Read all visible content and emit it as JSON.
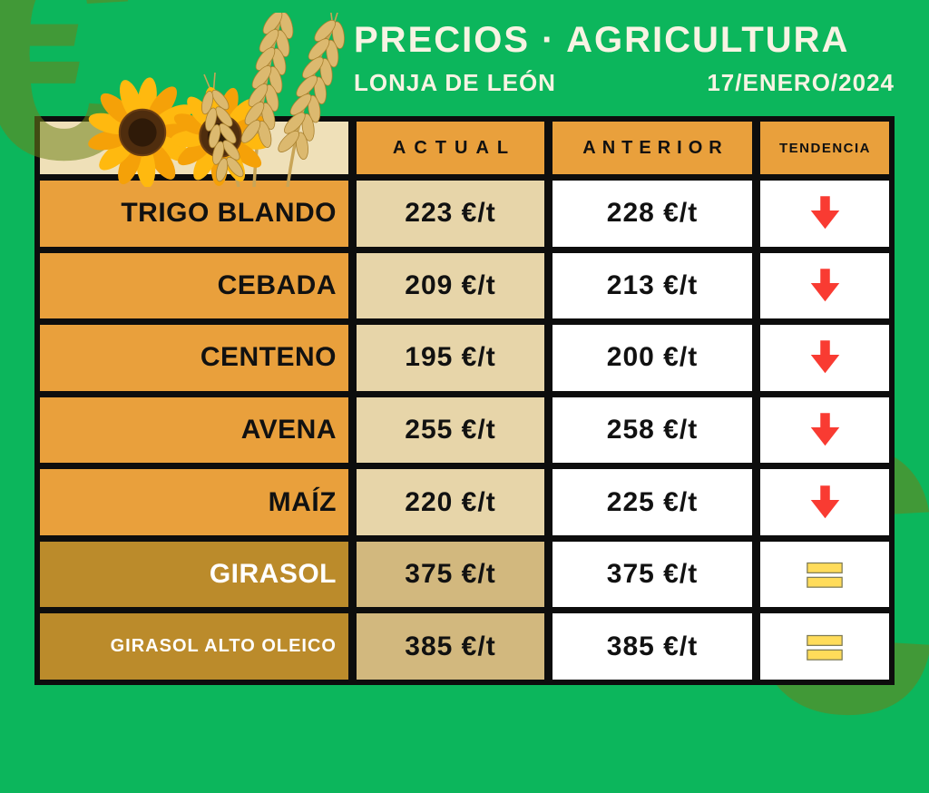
{
  "masthead": {
    "title": "PRECIOS · AGRICULTURA",
    "subtitle": "LONJA DE LEÓN",
    "date": "17/ENERO/2024"
  },
  "table": {
    "columns": [
      "ACTUAL",
      "ANTERIOR",
      "TENDENCIA"
    ]
  },
  "chart_data": {
    "type": "table",
    "title": "PRECIOS · AGRICULTURA",
    "subtitle": "LONJA DE LEÓN",
    "date": "17/ENERO/2024",
    "unit": "€/t",
    "columns": [
      "",
      "ACTUAL",
      "ANTERIOR",
      "TENDENCIA"
    ],
    "rows": [
      {
        "product": "TRIGO BLANDO",
        "actual": 223,
        "anterior": 228,
        "trend": "down",
        "highlight": false
      },
      {
        "product": "CEBADA",
        "actual": 209,
        "anterior": 213,
        "trend": "down",
        "highlight": false
      },
      {
        "product": "CENTENO",
        "actual": 195,
        "anterior": 200,
        "trend": "down",
        "highlight": false
      },
      {
        "product": "AVENA",
        "actual": 255,
        "anterior": 258,
        "trend": "down",
        "highlight": false
      },
      {
        "product": "MAÍZ",
        "actual": 220,
        "anterior": 225,
        "trend": "down",
        "highlight": false
      },
      {
        "product": "GIRASOL",
        "actual": 375,
        "anterior": 375,
        "trend": "equal",
        "highlight": true
      },
      {
        "product": "GIRASOL ALTO OLEICO",
        "actual": 385,
        "anterior": 385,
        "trend": "equal",
        "highlight": true
      }
    ]
  },
  "icons": {
    "euro": "€",
    "trend_down": "red-arrow-down",
    "trend_equal": "yellow-equals",
    "corner_art": "sunflowers-and-wheat"
  },
  "colors": {
    "background_green": "#0CB65C",
    "watermark_green": "#57A144",
    "accent_orange": "#E9A03C",
    "corner_beige": "#EFE0B8",
    "actual_tan": "#E7D5A9",
    "highlight_gold": "#BB8B2B",
    "highlight_tan": "#D2B87E",
    "cell_white": "#FFFFFF",
    "border_black": "#0D0D0D",
    "trend_down_red": "#F93B32",
    "trend_equal_yellow": "#FFDC5A",
    "title_cream": "#F8F3E3"
  }
}
